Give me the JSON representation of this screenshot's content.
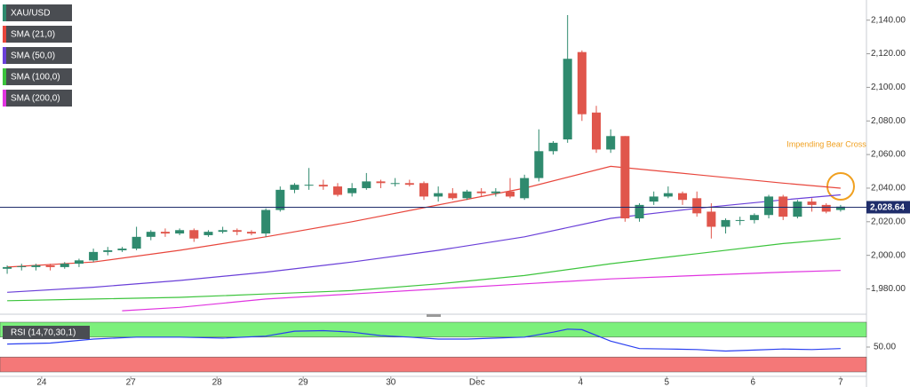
{
  "chart_data": [
    {
      "type": "candlestick",
      "x": [
        0,
        1,
        2,
        3,
        4,
        5,
        6,
        7,
        8,
        9,
        10,
        11,
        12,
        13,
        14,
        15,
        16,
        17,
        18,
        19,
        20,
        21,
        22,
        23,
        24,
        25,
        26,
        27,
        28,
        29,
        30,
        31,
        32,
        33,
        34,
        35,
        36,
        37,
        38,
        39,
        40,
        41,
        42,
        43,
        44,
        45,
        46,
        47,
        48,
        49,
        50,
        51,
        52,
        53,
        54,
        55,
        56,
        57,
        58
      ],
      "series": [
        {
          "name": "XAU/USD",
          "up_color": "#2f8a6e",
          "down_color": "#e0564c",
          "open": [
            1992,
            1993,
            1993,
            1994,
            1993,
            1995,
            1997,
            2002,
            2003,
            2004,
            2011,
            2014,
            2013,
            2015,
            2012,
            2014,
            2015,
            2014,
            2013,
            2027,
            2039,
            2042,
            2042,
            2041,
            2037,
            2040,
            2044,
            2043,
            2043,
            2043,
            2035,
            2037,
            2034,
            2038,
            2037,
            2038,
            2034,
            2046,
            2062,
            2069,
            2121,
            2085,
            2063,
            2071,
            2022,
            2032,
            2035,
            2037,
            2034,
            2026,
            2017,
            2021,
            2021,
            2024,
            2035,
            2023,
            2032,
            2030,
            2027
          ],
          "close": [
            1993,
            1993.5,
            1994,
            1993,
            1995,
            1997,
            2002,
            2003,
            2004,
            2011,
            2014,
            2013,
            2015,
            2010,
            2014,
            2015,
            2014,
            2013,
            2027,
            2039,
            2042,
            2042,
            2041,
            2036,
            2040,
            2044,
            2043,
            2043,
            2042,
            2035,
            2037,
            2034,
            2038,
            2037,
            2038,
            2035,
            2046,
            2062,
            2067,
            2117,
            2084,
            2063,
            2071,
            2022,
            2030,
            2035,
            2037,
            2033,
            2025,
            2017,
            2021,
            2021,
            2024,
            2035,
            2023,
            2032,
            2030,
            2026,
            2029
          ],
          "high": [
            1994,
            1995,
            1995,
            1995,
            1996,
            1998,
            2004,
            2005,
            2005,
            2017,
            2015,
            2016,
            2016,
            2016,
            2015,
            2017,
            2016,
            2015,
            2028,
            2041,
            2043,
            2052,
            2045,
            2043,
            2043,
            2049,
            2045,
            2046,
            2045,
            2044,
            2041,
            2040,
            2039,
            2040,
            2040,
            2046,
            2048,
            2075,
            2068,
            2143,
            2122,
            2089,
            2075,
            2071,
            2031,
            2038,
            2041,
            2038,
            2038,
            2031,
            2022,
            2023,
            2025,
            2036,
            2036,
            2033,
            2034,
            2031,
            2030
          ],
          "low": [
            1989,
            1991,
            1991,
            1991,
            1992,
            1993,
            1996,
            2000,
            2002,
            2003,
            2009,
            2011,
            2012,
            2008,
            2011,
            2013,
            2012,
            2012,
            2011,
            2026,
            2037,
            2039,
            2039,
            2035,
            2035,
            2039,
            2040,
            2041,
            2041,
            2033,
            2032,
            2033,
            2033,
            2035,
            2035,
            2034,
            2033,
            2044,
            2060,
            2067,
            2080,
            2061,
            2061,
            2020,
            2020,
            2030,
            2034,
            2030,
            2023,
            2010,
            2013,
            2018,
            2019,
            2022,
            2021,
            2022,
            2026,
            2025,
            2026
          ]
        }
      ],
      "lines": [
        {
          "name": "SMA (21,0)",
          "color": "#e8463c",
          "x": [
            0,
            6,
            12,
            18,
            24,
            30,
            36,
            42,
            48,
            54,
            58
          ],
          "values": [
            1993,
            1996,
            2003,
            2011,
            2020,
            2030,
            2040,
            2053,
            2048,
            2043,
            2040
          ]
        },
        {
          "name": "SMA (50,0)",
          "color": "#6a3fd8",
          "x": [
            0,
            6,
            12,
            18,
            24,
            30,
            36,
            42,
            48,
            54,
            58
          ],
          "values": [
            1978,
            1981,
            1985,
            1990,
            1996,
            2003,
            2011,
            2022,
            2028,
            2033,
            2036
          ]
        },
        {
          "name": "SMA (100,0)",
          "color": "#3cc43c",
          "x": [
            0,
            6,
            12,
            18,
            24,
            30,
            36,
            42,
            48,
            54,
            58
          ],
          "values": [
            1973,
            1974,
            1975,
            1977,
            1979,
            1983,
            1988,
            1995,
            2001,
            2007,
            2010
          ]
        },
        {
          "name": "SMA (200,0)",
          "color": "#e034e0",
          "x": [
            8,
            12,
            18,
            24,
            30,
            36,
            42,
            48,
            54,
            58
          ],
          "values": [
            1967,
            1969,
            1974,
            1977,
            1980,
            1983,
            1986,
            1988,
            1990,
            1991
          ]
        }
      ],
      "xlim": [
        -0.5,
        59.8
      ],
      "xticks": [
        {
          "value": 2.4,
          "label": "24"
        },
        {
          "value": 8.6,
          "label": "27"
        },
        {
          "value": 14.6,
          "label": "28"
        },
        {
          "value": 20.6,
          "label": "29"
        },
        {
          "value": 26.7,
          "label": "30"
        },
        {
          "value": 32.7,
          "label": "Dec"
        },
        {
          "value": 39.9,
          "label": "4"
        },
        {
          "value": 45.9,
          "label": "5"
        },
        {
          "value": 51.9,
          "label": "6"
        },
        {
          "value": 58,
          "label": "7"
        }
      ],
      "ylim": [
        1966,
        2152
      ],
      "yticks": [
        {
          "value": 1980,
          "label": "1,980.00"
        },
        {
          "value": 2000,
          "label": "2,000.00"
        },
        {
          "value": 2020,
          "label": "2,020.00"
        },
        {
          "value": 2040,
          "label": "2,040.00"
        },
        {
          "value": 2060,
          "label": "2,060.00"
        },
        {
          "value": 2080,
          "label": "2,080.00"
        },
        {
          "value": 2100,
          "label": "2,100.00"
        },
        {
          "value": 2120,
          "label": "2,120.00"
        },
        {
          "value": 2140,
          "label": "2,140.00"
        }
      ],
      "last_price": {
        "value": 2028.64,
        "label": "2,028.64",
        "color": "#1f2d6b"
      },
      "annotation": "Impending  Bear Cross"
    },
    {
      "type": "line",
      "title": "RSI (14,70,30,1)",
      "series": [
        {
          "color": "#2a3ff0",
          "x": [
            0,
            3,
            6,
            9,
            12,
            15,
            18,
            20,
            22,
            24,
            26,
            28,
            30,
            32,
            34,
            36,
            38,
            39,
            40,
            42,
            44,
            46,
            48,
            50,
            52,
            54,
            56,
            58
          ],
          "values": [
            56,
            58,
            66,
            70,
            70,
            68,
            72,
            82,
            83,
            80,
            73,
            70,
            66,
            66,
            68,
            70,
            80,
            86,
            85,
            62,
            47,
            46,
            45,
            42,
            44,
            46,
            45,
            47
          ]
        }
      ],
      "bands": [
        {
          "from": 70,
          "to": 100,
          "color": "#7cf07c"
        },
        {
          "from": 0,
          "to": 30,
          "color": "#f47878"
        }
      ],
      "xlim": [
        -0.5,
        59.8
      ],
      "ylim": [
        0,
        100
      ],
      "yticks": [
        {
          "value": 50,
          "label": "50.00"
        }
      ]
    }
  ]
}
